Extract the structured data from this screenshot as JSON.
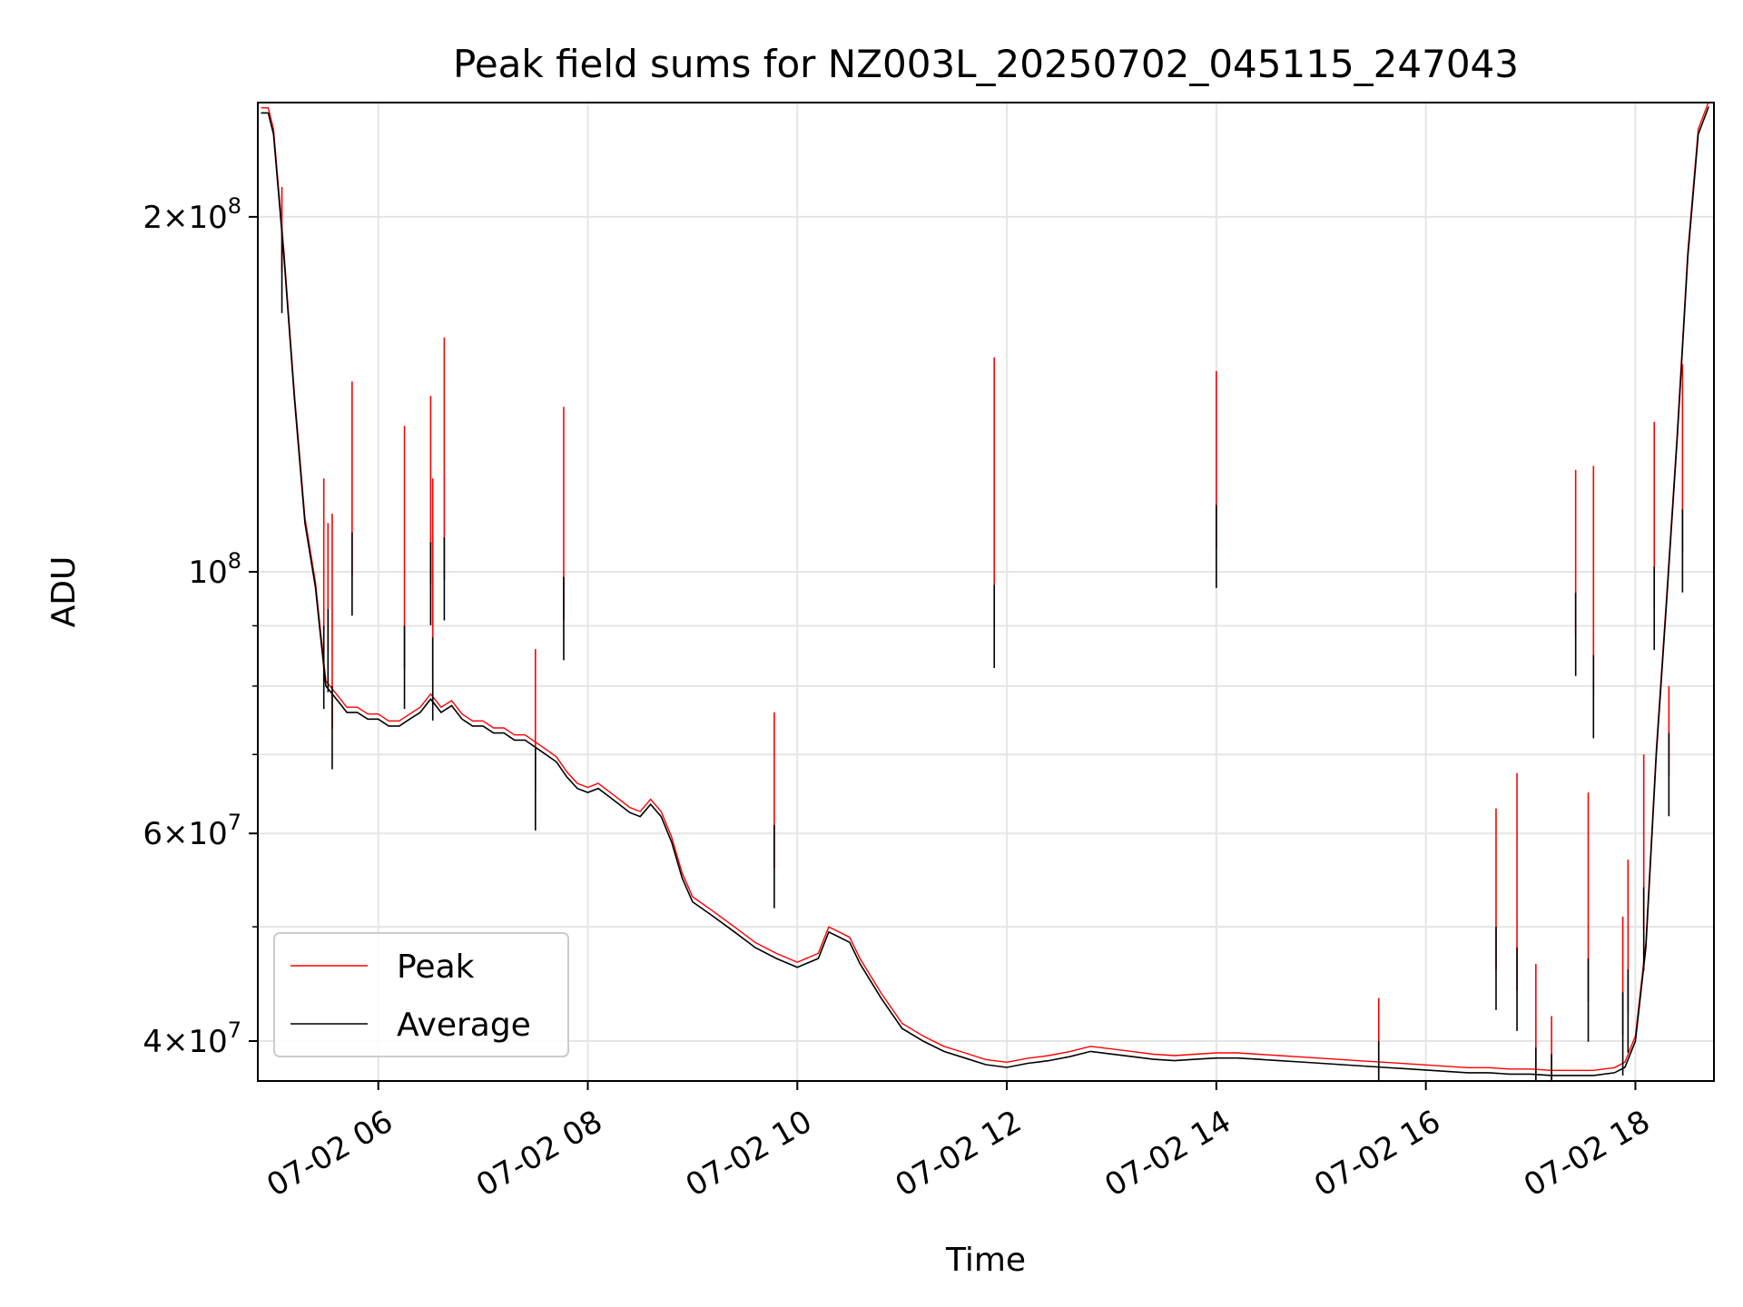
{
  "chart_data": {
    "type": "line",
    "title": "Peak field sums for NZ003L_20250702_045115_247043",
    "xlabel": "Time",
    "ylabel": "ADU",
    "x_unit": "hour of day (2025-07-02)",
    "xlim": [
      4.85,
      18.75
    ],
    "ylim": [
      37000000,
      250000000
    ],
    "yscale": "log",
    "grid": true,
    "legend": {
      "placement": "lower-left",
      "entries": [
        "Peak",
        "Average"
      ]
    },
    "colors": {
      "Peak": "#ff0000",
      "Average": "#000000",
      "grid": "#e5e5e5"
    },
    "x_ticks": [
      {
        "value": 6,
        "label": "07-02 06"
      },
      {
        "value": 8,
        "label": "07-02 08"
      },
      {
        "value": 10,
        "label": "07-02 10"
      },
      {
        "value": 12,
        "label": "07-02 12"
      },
      {
        "value": 14,
        "label": "07-02 14"
      },
      {
        "value": 16,
        "label": "07-02 16"
      },
      {
        "value": 18,
        "label": "07-02 18"
      }
    ],
    "y_major_ticks": [
      {
        "value": 40000000,
        "mantissa": "4",
        "exp": "7"
      },
      {
        "value": 60000000,
        "mantissa": "6",
        "exp": "7"
      },
      {
        "value": 100000000,
        "mantissa": "",
        "exp": "8"
      },
      {
        "value": 200000000,
        "mantissa": "2",
        "exp": "8"
      }
    ],
    "y_minor_ticks": [
      50000000,
      70000000,
      80000000,
      90000000
    ],
    "series": [
      {
        "name": "Average",
        "x": [
          4.88,
          4.95,
          5.0,
          5.1,
          5.2,
          5.3,
          5.4,
          5.45,
          5.5,
          5.55,
          5.6,
          5.65,
          5.7,
          5.8,
          5.9,
          6.0,
          6.1,
          6.2,
          6.3,
          6.4,
          6.5,
          6.6,
          6.7,
          6.8,
          6.9,
          7.0,
          7.1,
          7.2,
          7.3,
          7.4,
          7.5,
          7.6,
          7.7,
          7.8,
          7.9,
          8.0,
          8.1,
          8.2,
          8.3,
          8.4,
          8.5,
          8.6,
          8.7,
          8.8,
          8.9,
          9.0,
          9.2,
          9.4,
          9.6,
          9.8,
          10.0,
          10.2,
          10.3,
          10.4,
          10.5,
          10.6,
          10.8,
          11.0,
          11.2,
          11.4,
          11.6,
          11.8,
          12.0,
          12.2,
          12.4,
          12.6,
          12.8,
          13.0,
          13.2,
          13.4,
          13.6,
          13.8,
          14.0,
          14.2,
          14.4,
          14.6,
          14.8,
          15.0,
          15.2,
          15.4,
          15.6,
          15.8,
          16.0,
          16.2,
          16.4,
          16.6,
          16.8,
          17.0,
          17.2,
          17.4,
          17.6,
          17.8,
          17.9,
          18.0,
          18.1,
          18.2,
          18.3,
          18.4,
          18.5,
          18.6,
          18.7
        ],
        "y": [
          245000000,
          245000000,
          235000000,
          185000000,
          140000000,
          110000000,
          97000000,
          88000000,
          80000000,
          79000000,
          78000000,
          77000000,
          76000000,
          76000000,
          75000000,
          75000000,
          74000000,
          74000000,
          75000000,
          76000000,
          78000000,
          76000000,
          77000000,
          75000000,
          74000000,
          74000000,
          73000000,
          73000000,
          72000000,
          72000000,
          71000000,
          70000000,
          69000000,
          67000000,
          65500000,
          65000000,
          65500000,
          64500000,
          63500000,
          62500000,
          62000000,
          63500000,
          62000000,
          59000000,
          55000000,
          52500000,
          51000000,
          49500000,
          48000000,
          47000000,
          46200000,
          47000000,
          49500000,
          49000000,
          48500000,
          46500000,
          43500000,
          41000000,
          40000000,
          39200000,
          38700000,
          38200000,
          38000000,
          38300000,
          38500000,
          38800000,
          39200000,
          39000000,
          38800000,
          38600000,
          38500000,
          38600000,
          38700000,
          38700000,
          38600000,
          38500000,
          38400000,
          38300000,
          38200000,
          38100000,
          38000000,
          37900000,
          37800000,
          37700000,
          37600000,
          37600000,
          37500000,
          37500000,
          37400000,
          37400000,
          37400000,
          37600000,
          38000000,
          40000000,
          48000000,
          70000000,
          95000000,
          130000000,
          185000000,
          235000000,
          248000000
        ]
      },
      {
        "name": "Peak",
        "x": [
          5.08,
          5.48,
          5.52,
          5.56,
          5.75,
          6.25,
          6.5,
          6.52,
          6.63,
          7.5,
          7.77,
          9.78,
          11.88,
          14.0,
          15.55,
          16.67,
          16.87,
          17.05,
          17.2,
          17.43,
          17.55,
          17.6,
          17.88,
          17.93,
          18.08,
          18.18,
          18.32,
          18.45
        ],
        "y": [
          212000000,
          120000000,
          110000000,
          112000000,
          145000000,
          133000000,
          141000000,
          120000000,
          158000000,
          86000000,
          138000000,
          76000000,
          152000000,
          148000000,
          43500000,
          63000000,
          67500000,
          46500000,
          42000000,
          122000000,
          65000000,
          123000000,
          51000000,
          57000000,
          70000000,
          134000000,
          80000000,
          150000000
        ],
        "average_at_spikes": [
          195000000,
          90000000,
          93000000,
          80000000,
          108000000,
          90000000,
          106000000,
          88000000,
          107000000,
          71000000,
          99000000,
          61000000,
          97500000,
          114000000,
          40000000,
          50000000,
          48000000,
          39500000,
          39000000,
          96000000,
          47000000,
          85000000,
          44000000,
          46000000,
          54000000,
          101000000,
          73000000,
          113000000
        ]
      }
    ]
  }
}
